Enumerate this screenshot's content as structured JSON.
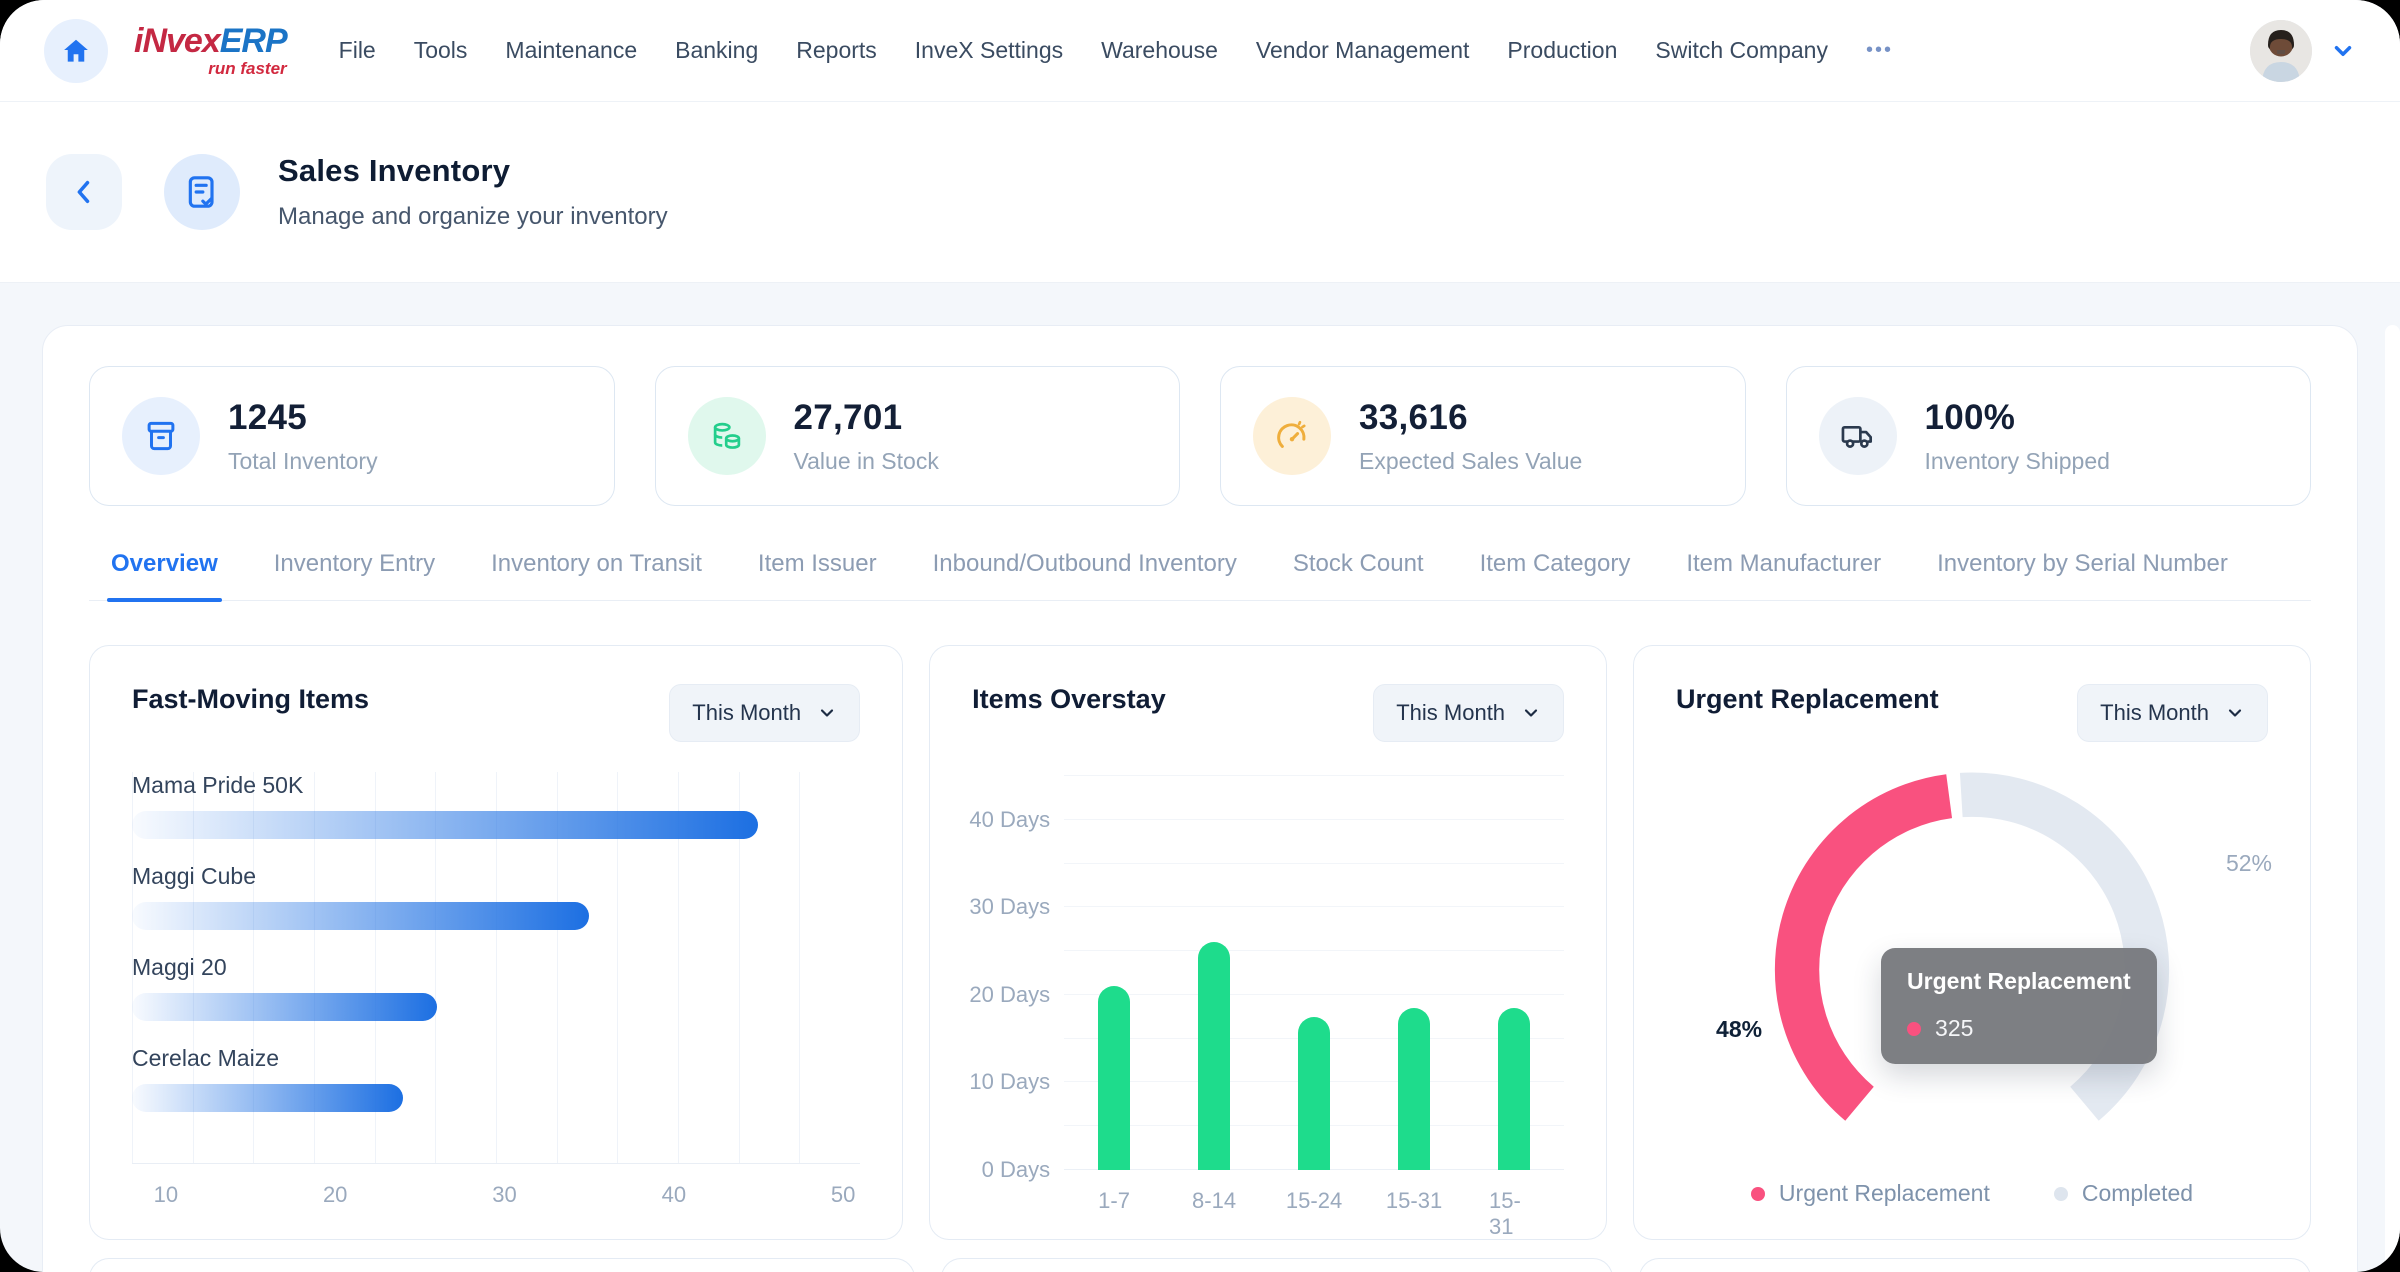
{
  "nav": {
    "brand": {
      "invex": "iNvex",
      "erp": "ERP",
      "tagline": "run faster"
    },
    "items": [
      "File",
      "Tools",
      "Maintenance",
      "Banking",
      "Reports",
      "InveX Settings",
      "Warehouse",
      "Vendor Management",
      "Production",
      "Switch Company"
    ],
    "more_label": "•••"
  },
  "header": {
    "title": "Sales Inventory",
    "subtitle": "Manage and organize your inventory"
  },
  "stats": [
    {
      "value": "1245",
      "label": "Total Inventory",
      "icon": "inventory-box-icon",
      "accent": "#2173F0",
      "bg": "#E7F0FD"
    },
    {
      "value": "27,701",
      "label": "Value in Stock",
      "icon": "coins-icon",
      "accent": "#23CE8C",
      "bg": "#E0F8ED"
    },
    {
      "value": "33,616",
      "label": "Expected Sales Value",
      "icon": "gauge-icon",
      "accent": "#EFAE3C",
      "bg": "#FDF0D8"
    },
    {
      "value": "100%",
      "label": "Inventory Shipped",
      "icon": "truck-icon",
      "accent": "#2B3A4E",
      "bg": "#EDF2F8"
    }
  ],
  "tabs": [
    "Overview",
    "Inventory Entry",
    "Inventory on Transit",
    "Item Issuer",
    "Inbound/Outbound Inventory",
    "Stock Count",
    "Item Category",
    "Item Manufacturer",
    "Inventory by Serial Number"
  ],
  "active_tab": 0,
  "chart_data": [
    {
      "id": "fast-moving-items",
      "type": "bar",
      "orientation": "horizontal",
      "title": "Fast-Moving Items",
      "period": "This Month",
      "categories": [
        "Mama Pride 50K",
        "Maggi Cube",
        "Maggi 20",
        "Cerelac Maize"
      ],
      "values": [
        45,
        35,
        26,
        24
      ],
      "xticks": [
        10,
        20,
        30,
        40,
        50
      ],
      "xlim": [
        8,
        51
      ],
      "grid": "vertical",
      "bar_gradient": [
        "rgba(38,116,239,0.03)",
        "#1C6FE2"
      ]
    },
    {
      "id": "items-overstay",
      "type": "bar",
      "orientation": "vertical",
      "title": "Items Overstay",
      "period": "This Month",
      "categories": [
        "1-7",
        "8-14",
        "15-24",
        "15-31",
        "15-31"
      ],
      "values": [
        21,
        26,
        17.5,
        18.5,
        18.5
      ],
      "yticks": [
        0,
        10,
        20,
        30,
        40
      ],
      "ytick_suffix": " Days",
      "ylim": [
        0,
        45
      ],
      "grid": "horizontal",
      "bar_color": "#1EDC8C"
    },
    {
      "id": "urgent-replacement",
      "type": "gauge",
      "title": "Urgent Replacement",
      "period": "This Month",
      "total_sweep_deg": 280,
      "gap_deg": 4,
      "series": [
        {
          "name": "Urgent Replacement",
          "pct": 48,
          "value": 325,
          "color": "#F9517F"
        },
        {
          "name": "Completed",
          "pct": 52,
          "color": "#E3E9F1"
        }
      ],
      "left_label": "48%",
      "right_label": "52%",
      "tooltip": {
        "title": "Urgent Replacement",
        "value": "325"
      },
      "legend": [
        "Urgent Replacement",
        "Completed"
      ],
      "legend_colors": [
        "#F9517F",
        "#DEE5EE"
      ]
    }
  ]
}
